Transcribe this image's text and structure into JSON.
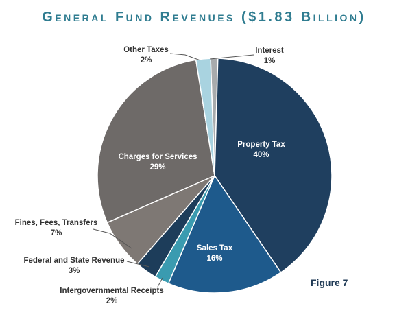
{
  "title": "General Fund Revenues ($1.83 Billion)",
  "figure_label": "Figure 7",
  "chart_data": {
    "type": "pie",
    "title": "General Fund Revenues ($1.83 Billion)",
    "slices": [
      {
        "name": "Interest",
        "value": 1,
        "label": "1%",
        "color": "#a8abad"
      },
      {
        "name": "Property Tax",
        "value": 40,
        "label": "40%",
        "color": "#1f3f5f"
      },
      {
        "name": "Sales Tax",
        "value": 16,
        "label": "16%",
        "color": "#1e5a8c"
      },
      {
        "name": "Intergovernmental Receipts",
        "value": 2,
        "label": "2%",
        "color": "#3a9bb0"
      },
      {
        "name": "Federal and State Revenue",
        "value": 3,
        "label": "3%",
        "color": "#1d3d5a"
      },
      {
        "name": "Fines, Fees, Transfers",
        "value": 7,
        "label": "7%",
        "color": "#7e7874"
      },
      {
        "name": "Charges for Services",
        "value": 29,
        "label": "29%",
        "color": "#6e6a68"
      },
      {
        "name": "Other Taxes",
        "value": 2,
        "label": "2%",
        "color": "#a9d3e0"
      }
    ]
  }
}
